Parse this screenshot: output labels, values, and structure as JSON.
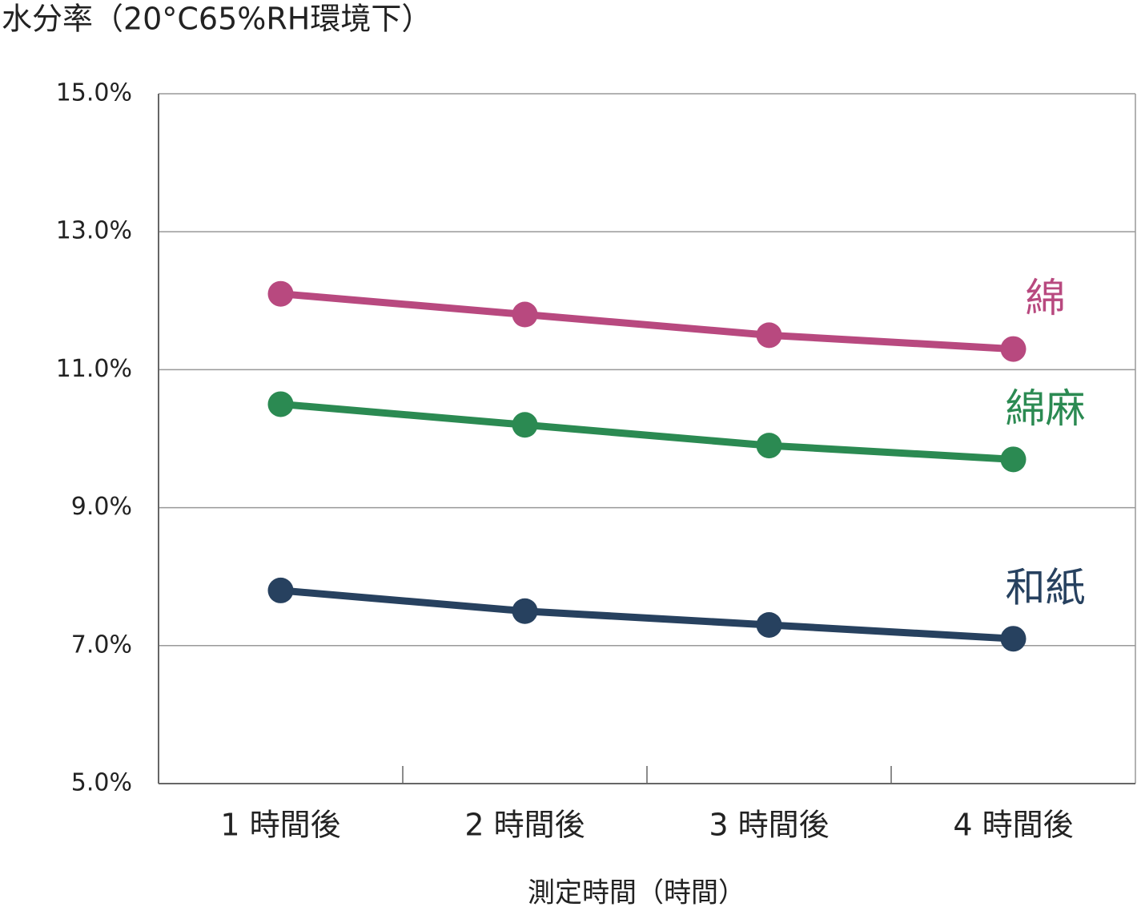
{
  "chart_data": {
    "type": "line",
    "title": "水分率（20°C65%RH環境下）",
    "x_label": "測定時間（時間）",
    "categories": [
      "1 時間後",
      "2 時間後",
      "3 時間後",
      "4 時間後"
    ],
    "series": [
      {
        "name": "綿",
        "color": "#b8497f",
        "values": [
          12.1,
          11.8,
          11.5,
          11.3
        ]
      },
      {
        "name": "綿麻",
        "color": "#2b8a52",
        "values": [
          10.5,
          10.2,
          9.9,
          9.7
        ]
      },
      {
        "name": "和紙",
        "color": "#27415f",
        "values": [
          7.8,
          7.5,
          7.3,
          7.1
        ]
      }
    ],
    "ylim": [
      5,
      15
    ],
    "yticks": [
      {
        "value": 5,
        "label": "5.0%"
      },
      {
        "value": 7,
        "label": "7.0%"
      },
      {
        "value": 9,
        "label": "9.0%"
      },
      {
        "value": 11,
        "label": "11.0%"
      },
      {
        "value": 13,
        "label": "13.0%"
      },
      {
        "value": 15,
        "label": "15.0%"
      }
    ],
    "grid": true
  }
}
